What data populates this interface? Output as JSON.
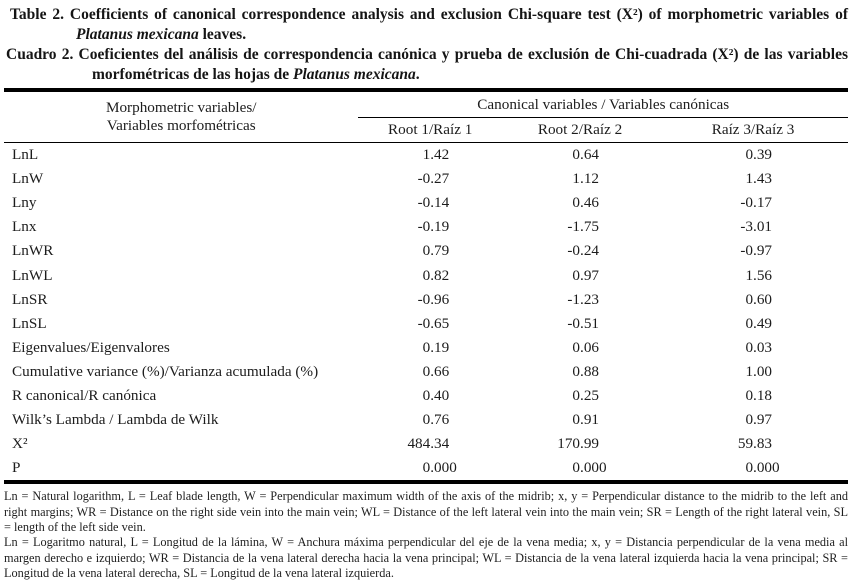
{
  "colors": {
    "background": "#ffffff",
    "ink": "#1c1c1c",
    "rule": "#000000"
  },
  "captions": {
    "english": {
      "label": "Table 2.",
      "before": " Coefficients of canonical correspondence analysis and exclusion Chi-square test (X²) of morphometric variables of ",
      "species": "Platanus mexicana",
      "after": " leaves."
    },
    "spanish": {
      "label": "Cuadro 2.",
      "before": " Coeficientes del análisis de correspondencia canónica y prueba de exclusión de Chi-cuadrada (X²) de las variables morfométricas de las hojas de ",
      "species": "Platanus mexicana",
      "after": "."
    }
  },
  "table": {
    "header": {
      "variables_line1": "Morphometric variables/",
      "variables_line2": "Variables morfométricas",
      "canonical": "Canonical variables / Variables canónicas",
      "roots": [
        "Root 1/Raíz 1",
        "Root 2/Raíz 2",
        "Raíz 3/Raíz 3"
      ]
    },
    "rows": [
      {
        "label": "LnL",
        "values": [
          "1.42",
          "0.64",
          "0.39"
        ]
      },
      {
        "label": "LnW",
        "values": [
          "-0.27",
          "1.12",
          "1.43"
        ]
      },
      {
        "label": "Lny",
        "values": [
          "-0.14",
          "0.46",
          "-0.17"
        ]
      },
      {
        "label": "Lnx",
        "values": [
          "-0.19",
          "-1.75",
          "-3.01"
        ]
      },
      {
        "label": "LnWR",
        "values": [
          "0.79",
          "-0.24",
          "-0.97"
        ]
      },
      {
        "label": "LnWL",
        "values": [
          "0.82",
          "0.97",
          "1.56"
        ]
      },
      {
        "label": "LnSR",
        "values": [
          "-0.96",
          "-1.23",
          "0.60"
        ]
      },
      {
        "label": "LnSL",
        "values": [
          "-0.65",
          "-0.51",
          "0.49"
        ]
      },
      {
        "label": "Eigenvalues/Eigenvalores",
        "values": [
          "0.19",
          "0.06",
          "0.03"
        ]
      },
      {
        "label": "Cumulative variance (%)/Varianza acumulada (%)",
        "values": [
          "0.66",
          "0.88",
          "1.00"
        ]
      },
      {
        "label": "R canonical/R canónica",
        "values": [
          "0.40",
          "0.25",
          "0.18"
        ]
      },
      {
        "label": "Wilk’s Lambda / Lambda de Wilk",
        "values": [
          "0.76",
          "0.91",
          "0.97"
        ]
      },
      {
        "label": "X²",
        "values": [
          "484.34",
          "170.99",
          "59.83"
        ]
      },
      {
        "label": "P",
        "values": [
          "0.000",
          "0.000",
          "0.000"
        ]
      }
    ]
  },
  "footnotes": {
    "english": "Ln = Natural logarithm, L = Leaf blade length, W = Perpendicular maximum width of the axis of the midrib; x, y = Perpendicular distance to the midrib to the left and right margins; WR = Distance on the right side vein into the main vein; WL = Distance of the left lateral vein into the main vein; SR = Length of the right lateral vein, SL = length of the left side vein.",
    "spanish": "Ln = Logaritmo natural, L = Longitud de la lámina, W = Anchura máxima perpendicular del eje de la vena media; x, y = Distancia perpendicular de la vena media al margen derecho e izquierdo; WR = Distancia de la vena lateral derecha hacia la vena principal; WL = Distancia de la vena lateral izquierda hacia la vena principal; SR = Longitud de la vena lateral derecha, SL = Longitud de la vena lateral izquierda."
  }
}
